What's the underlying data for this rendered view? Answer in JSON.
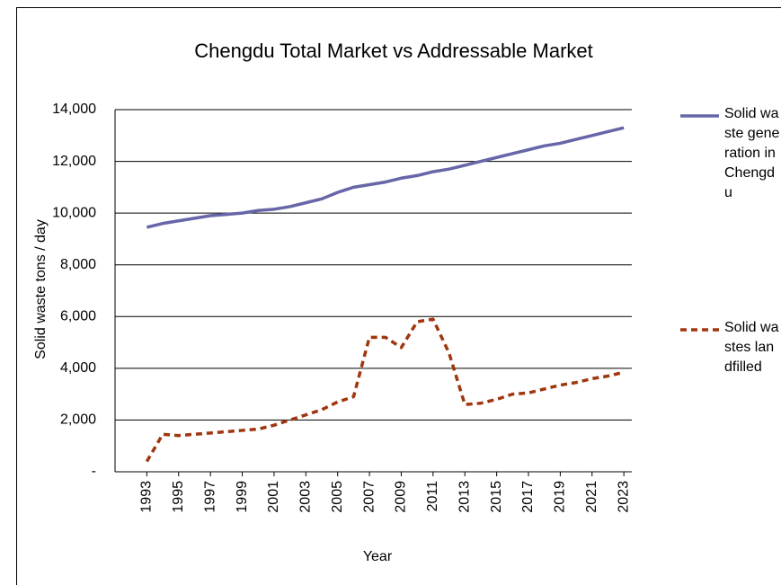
{
  "chart_data": {
    "type": "line",
    "title": "Chengdu Total Market vs Addressable Market",
    "x_label": "Year",
    "y_label": "Solid waste tons / day",
    "x": [
      1993,
      1994,
      1995,
      1996,
      1997,
      1998,
      1999,
      2000,
      2001,
      2002,
      2003,
      2004,
      2005,
      2006,
      2007,
      2008,
      2009,
      2010,
      2011,
      2012,
      2013,
      2014,
      2015,
      2016,
      2017,
      2018,
      2019,
      2020,
      2021,
      2022,
      2023
    ],
    "xlim": [
      1991,
      2023.5
    ],
    "xticks": [
      1993,
      1995,
      1997,
      1999,
      2001,
      2003,
      2005,
      2007,
      2009,
      2011,
      2013,
      2015,
      2017,
      2019,
      2021,
      2023
    ],
    "ylim": [
      0,
      14000
    ],
    "yticks": [
      {
        "value": 0,
        "label": "-"
      },
      {
        "value": 2000,
        "label": "2,000"
      },
      {
        "value": 4000,
        "label": "4,000"
      },
      {
        "value": 6000,
        "label": "6,000"
      },
      {
        "value": 8000,
        "label": "8,000"
      },
      {
        "value": 10000,
        "label": "10,000"
      },
      {
        "value": 12000,
        "label": "12,000"
      },
      {
        "value": 14000,
        "label": "14,000"
      }
    ],
    "grid": true,
    "legend": "right",
    "series": [
      {
        "name": "Solid waste generation in Chengdu",
        "color": "#6666a8",
        "dash": false,
        "values": [
          9450,
          9600,
          9700,
          9800,
          9900,
          9950,
          10000,
          10100,
          10150,
          10250,
          10400,
          10550,
          10800,
          11000,
          11100,
          11200,
          11350,
          11450,
          11600,
          11700,
          11850,
          12000,
          12150,
          12300,
          12450,
          12600,
          12700,
          12850,
          13000,
          13150,
          13300
        ]
      },
      {
        "name": "Solid wastes landfilled",
        "color": "#a0360f",
        "dash": true,
        "values": [
          400,
          1450,
          1400,
          1450,
          1500,
          1550,
          1600,
          1650,
          1800,
          2000,
          2200,
          2400,
          2700,
          2900,
          5200,
          5200,
          4800,
          5800,
          5900,
          4600,
          2600,
          2650,
          2800,
          3000,
          3050,
          3200,
          3350,
          3450,
          3600,
          3700,
          3850
        ]
      }
    ]
  }
}
